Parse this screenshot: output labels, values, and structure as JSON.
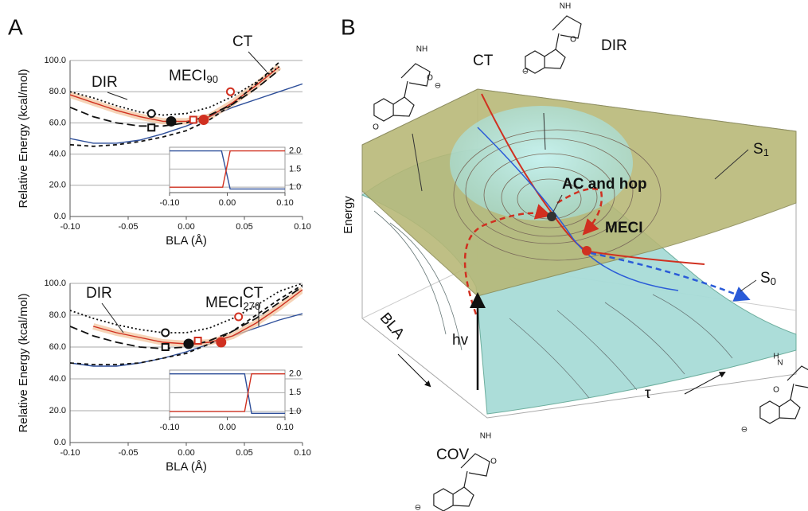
{
  "panel_labels": [
    "A",
    "B"
  ],
  "chart_data": [
    {
      "type": "line",
      "xlabel": "BLA (Å)",
      "ylabel": "Relative Energy (kcal/mol)",
      "xlim": [
        -0.1,
        0.1
      ],
      "ylim": [
        0,
        100
      ],
      "xticks": [
        {
          "value": -0.1,
          "label": "-0.10"
        },
        {
          "value": -0.05,
          "label": "-0.05"
        },
        {
          "value": 0,
          "label": "0.00"
        },
        {
          "value": 0.05,
          "label": "0.05"
        },
        {
          "value": 0.1,
          "label": "0.10"
        }
      ],
      "yticks": [
        {
          "value": 0,
          "label": "0.0"
        },
        {
          "value": 20,
          "label": "20.0"
        },
        {
          "value": 40,
          "label": "40.0"
        },
        {
          "value": 60,
          "label": "60.0"
        },
        {
          "value": 80,
          "label": "80.0"
        },
        {
          "value": 100,
          "label": "100.0"
        }
      ],
      "grid": true,
      "yaxis_side": "left",
      "annotations": [
        "DIR",
        "CT"
      ],
      "meci_label": {
        "text": "MECI",
        "subscript": "90"
      },
      "series": [
        {
          "color": "#2e4f9a",
          "dash": "solid",
          "x": [
            -0.1,
            -0.08,
            -0.06,
            -0.04,
            -0.02,
            0,
            0.02,
            0.04,
            0.06,
            0.08,
            0.1
          ],
          "values": [
            50,
            47,
            47,
            49,
            53,
            58,
            64,
            70,
            75,
            80,
            85
          ]
        },
        {
          "color": "#d03020",
          "dash": "solid",
          "x": [
            -0.1,
            -0.08,
            -0.06,
            -0.04,
            -0.02,
            0,
            0.02,
            0.04,
            0.06,
            0.08
          ],
          "values": [
            78,
            73,
            68,
            64,
            61,
            61,
            64,
            73,
            84,
            96
          ]
        },
        {
          "color": "#111111",
          "dash": "dotted",
          "x": [
            -0.1,
            -0.08,
            -0.06,
            -0.04,
            -0.02,
            0,
            0.02,
            0.04,
            0.06,
            0.08
          ],
          "values": [
            80,
            76,
            71,
            67,
            65,
            66,
            70,
            77,
            86,
            96
          ]
        },
        {
          "color": "#111111",
          "dash": "long",
          "x": [
            -0.1,
            -0.08,
            -0.06,
            -0.04,
            -0.02,
            0,
            0.02,
            0.04,
            0.06,
            0.08
          ],
          "values": [
            70,
            64,
            60,
            58,
            58,
            60,
            65,
            72,
            82,
            94
          ]
        },
        {
          "color": "#111111",
          "dash": "short",
          "x": [
            -0.1,
            -0.08,
            -0.06,
            -0.04,
            -0.02,
            0,
            0.02,
            0.04,
            0.06,
            0.08
          ],
          "values": [
            46,
            45,
            46,
            48,
            51,
            55,
            62,
            72,
            85,
            99
          ]
        }
      ],
      "points": [
        {
          "x": -0.03,
          "y": 66,
          "shape": "circle",
          "filled": false,
          "color": "#111111"
        },
        {
          "x": -0.013,
          "y": 61,
          "shape": "circle",
          "filled": true,
          "color": "#111111"
        },
        {
          "x": -0.03,
          "y": 57,
          "shape": "square",
          "filled": false,
          "color": "#111111"
        },
        {
          "x": 0.006,
          "y": 62,
          "shape": "square",
          "filled": false,
          "color": "#d03020"
        },
        {
          "x": 0.015,
          "y": 62,
          "shape": "circle",
          "filled": true,
          "color": "#d03020"
        },
        {
          "x": 0.038,
          "y": 80,
          "shape": "circle",
          "filled": false,
          "color": "#d03020"
        }
      ]
    },
    {
      "type": "line",
      "xlabel": "BLA (Å)",
      "ylabel": "Relative Energy (kcal/mol)",
      "xlim": [
        -0.1,
        0.1
      ],
      "ylim": [
        0,
        100
      ],
      "xticks": [
        {
          "value": -0.1,
          "label": "-0.10"
        },
        {
          "value": -0.05,
          "label": "-0.05"
        },
        {
          "value": 0,
          "label": "0.00"
        },
        {
          "value": 0.05,
          "label": "0.05"
        },
        {
          "value": 0.1,
          "label": "0.10"
        }
      ],
      "yticks": [
        {
          "value": 0,
          "label": "0.0"
        },
        {
          "value": 20,
          "label": "20.0"
        },
        {
          "value": 40,
          "label": "40.0"
        },
        {
          "value": 60,
          "label": "60.0"
        },
        {
          "value": 80,
          "label": "80.0"
        },
        {
          "value": 100,
          "label": "100.0"
        }
      ],
      "grid": true,
      "yaxis_side": "left",
      "annotations": [
        "DIR",
        "CT"
      ],
      "meci_label": {
        "text": "MECI",
        "subscript": "270"
      },
      "series": [
        {
          "color": "#2e4f9a",
          "dash": "solid",
          "x": [
            -0.1,
            -0.08,
            -0.06,
            -0.04,
            -0.02,
            0,
            0.02,
            0.04,
            0.06,
            0.08,
            0.1
          ],
          "values": [
            50,
            48,
            48,
            50,
            53,
            57,
            62,
            67,
            72,
            77,
            81
          ]
        },
        {
          "color": "#d03020",
          "dash": "solid",
          "x": [
            -0.08,
            -0.06,
            -0.04,
            -0.02,
            0,
            0.02,
            0.04,
            0.06,
            0.08,
            0.1
          ],
          "values": [
            73,
            69,
            66,
            63,
            62,
            63,
            67,
            75,
            85,
            96
          ]
        },
        {
          "color": "#111111",
          "dash": "dotted",
          "x": [
            -0.1,
            -0.08,
            -0.06,
            -0.04,
            -0.02,
            0,
            0.02,
            0.04,
            0.06,
            0.08,
            0.1
          ],
          "values": [
            83,
            78,
            74,
            71,
            69,
            69,
            72,
            78,
            86,
            95,
            100
          ]
        },
        {
          "color": "#111111",
          "dash": "long",
          "x": [
            -0.1,
            -0.08,
            -0.06,
            -0.04,
            -0.02,
            0,
            0.02,
            0.04,
            0.06,
            0.08,
            0.1
          ],
          "values": [
            73,
            67,
            63,
            60,
            59,
            60,
            64,
            70,
            78,
            88,
            98
          ]
        },
        {
          "color": "#111111",
          "dash": "short",
          "x": [
            -0.1,
            -0.08,
            -0.06,
            -0.04,
            -0.02,
            0,
            0.02,
            0.04,
            0.06,
            0.08,
            0.1
          ],
          "values": [
            50,
            49,
            49,
            50,
            53,
            56,
            62,
            70,
            80,
            90,
            99
          ]
        }
      ],
      "points": [
        {
          "x": -0.018,
          "y": 69,
          "shape": "circle",
          "filled": false,
          "color": "#111111"
        },
        {
          "x": 0.002,
          "y": 62,
          "shape": "circle",
          "filled": true,
          "color": "#111111"
        },
        {
          "x": -0.018,
          "y": 60,
          "shape": "square",
          "filled": false,
          "color": "#111111"
        },
        {
          "x": 0.01,
          "y": 64,
          "shape": "square",
          "filled": false,
          "color": "#d03020"
        },
        {
          "x": 0.03,
          "y": 63,
          "shape": "circle",
          "filled": true,
          "color": "#d03020"
        },
        {
          "x": 0.045,
          "y": 79,
          "shape": "circle",
          "filled": false,
          "color": "#d03020"
        }
      ]
    },
    {
      "type": "line",
      "xlim": [
        -0.1,
        0.1
      ],
      "ylim": [
        0.85,
        2.1
      ],
      "xticks": [
        {
          "value": -0.1,
          "label": "-0.10"
        },
        {
          "value": 0,
          "label": "0.00"
        },
        {
          "value": 0.1,
          "label": "0.10"
        }
      ],
      "yticks": [
        {
          "value": 1,
          "label": "1.0"
        },
        {
          "value": 1.5,
          "label": "1.5"
        },
        {
          "value": 2,
          "label": "2.0"
        }
      ],
      "grid": true,
      "yaxis_side": "right",
      "series": [
        {
          "color": "#2e4f9a",
          "dash": "solid",
          "x": [
            -0.1,
            -0.01,
            0.005,
            0.1
          ],
          "values": [
            2,
            2,
            0.95,
            0.95
          ]
        },
        {
          "color": "#d03020",
          "dash": "solid",
          "x": [
            -0.1,
            -0.008,
            0.005,
            0.1
          ],
          "values": [
            1,
            1,
            2,
            2
          ]
        }
      ]
    },
    {
      "type": "line",
      "xlim": [
        -0.1,
        0.1
      ],
      "ylim": [
        0.85,
        2.1
      ],
      "xticks": [
        {
          "value": -0.1,
          "label": "-0.10"
        },
        {
          "value": 0,
          "label": "0.00"
        },
        {
          "value": 0.1,
          "label": "0.10"
        }
      ],
      "yticks": [
        {
          "value": 1,
          "label": "1.0"
        },
        {
          "value": 1.5,
          "label": "1.5"
        },
        {
          "value": 2,
          "label": "2.0"
        }
      ],
      "grid": true,
      "yaxis_side": "right",
      "series": [
        {
          "color": "#2e4f9a",
          "dash": "solid",
          "x": [
            -0.1,
            0.03,
            0.042,
            0.1
          ],
          "values": [
            2,
            2,
            0.95,
            0.95
          ]
        },
        {
          "color": "#d03020",
          "dash": "solid",
          "x": [
            -0.1,
            0.03,
            0.042,
            0.1
          ],
          "values": [
            1,
            1,
            2,
            2
          ]
        }
      ]
    }
  ],
  "diagram": {
    "ct": "CT",
    "dir": "DIR",
    "s1": {
      "text": "S",
      "subscript": "1"
    },
    "s0": {
      "text": "S",
      "subscript": "0"
    },
    "ac_hop": "AC and hop",
    "meci": "MECI",
    "energy": "Energy",
    "bla": "BLA",
    "hv": "hv",
    "tau": "τ",
    "cov": "COV",
    "molecules": [
      {
        "atoms": [
          "NH",
          "O",
          "⊖",
          "O"
        ]
      },
      {
        "atoms": [
          "NH",
          "O",
          "⊖"
        ]
      },
      {
        "atoms": [
          "NH",
          "O",
          "⊖"
        ]
      },
      {
        "atoms": [
          "H",
          "N",
          "O",
          "⊖"
        ]
      }
    ]
  }
}
